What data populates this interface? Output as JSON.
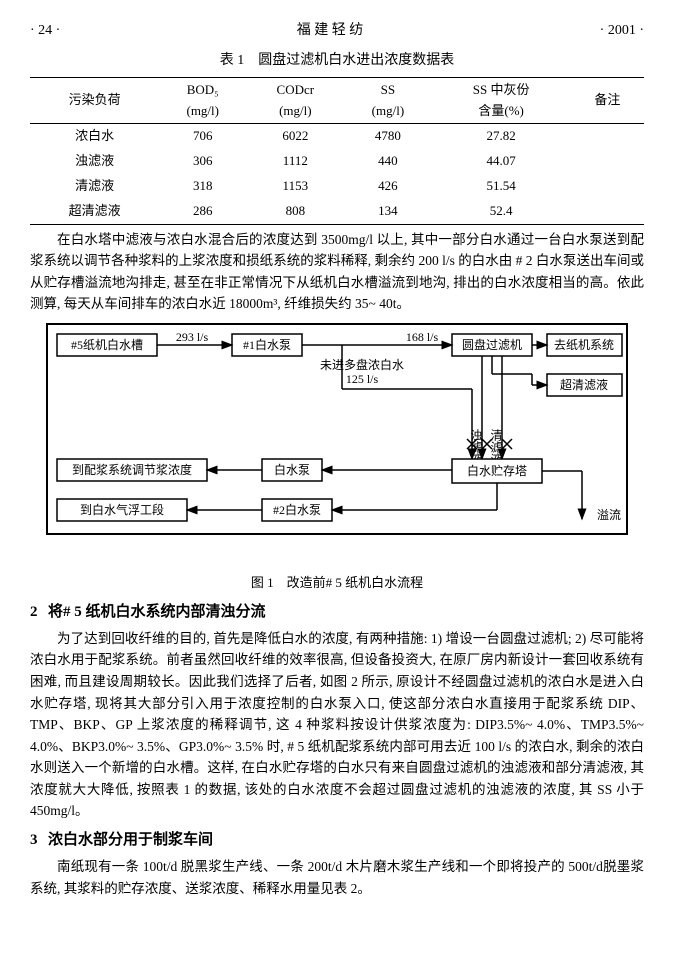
{
  "header": {
    "page": "· 24 ·",
    "journal": "福 建 轻 纺",
    "year": "· 2001 ·"
  },
  "table1": {
    "title": "表 1　圆盘过滤机白水进出浓度数据表",
    "columns": [
      "污染负荷",
      "BOD₅\n(mg/l)",
      "CODcr\n(mg/l)",
      "SS\n(mg/l)",
      "SS 中灰份\n含量(%)",
      "备注"
    ],
    "rows": [
      [
        "浓白水",
        "706",
        "6022",
        "4780",
        "27.82",
        ""
      ],
      [
        "浊滤液",
        "306",
        "1112",
        "440",
        "44.07",
        ""
      ],
      [
        "清滤液",
        "318",
        "1153",
        "426",
        "51.54",
        ""
      ],
      [
        "超清滤液",
        "286",
        "808",
        "134",
        "52.4",
        ""
      ]
    ]
  },
  "para1": "在白水塔中滤液与浓白水混合后的浓度达到 3500mg/l 以上, 其中一部分白水通过一台白水泵送到配浆系统以调节各种浆料的上浆浓度和损纸系统的浆料稀释, 剩余约 200 l/s 的白水由 # 2 白水泵送出车间或从贮存槽溢流地沟排走, 甚至在非正常情况下从纸机白水槽溢流到地沟, 排出的白水浓度相当的高。依此测算, 每天从车间排车的浓白水近 18000m³, 纤维损失约 35~ 40t。",
  "fig1": {
    "caption": "图 1　改造前# 5 纸机白水流程",
    "boxes": {
      "tank5": "#5纸机白水槽",
      "pump1": "#1白水泵",
      "disc": "圆盘过滤机",
      "toPaper": "去纸机系统",
      "ultra": "超清滤液",
      "store": "白水贮存塔",
      "pumpA": "白水泵",
      "pump2": "#2白水泵",
      "toMix": "到配浆系统调节浆浓度",
      "toFloat": "到白水气浮工段"
    },
    "labels": {
      "f293": "293 l/s",
      "f168": "168 l/s",
      "f125": "125 l/s",
      "noDisc": "未进多盘浓白水",
      "turbid": "浊滤液",
      "clear": "清滤液",
      "overflow": "溢流"
    }
  },
  "sec2": {
    "num": "2",
    "title": "将# 5 纸机白水系统内部清浊分流"
  },
  "para2": "为了达到回收纤维的目的, 首先是降低白水的浓度, 有两种措施: 1) 增设一台圆盘过滤机; 2) 尽可能将浓白水用于配浆系统。前者虽然回收纤维的效率很高, 但设备投资大, 在原厂房内新设计一套回收系统有困难, 而且建设周期较长。因此我们选择了后者, 如图 2 所示, 原设计不经圆盘过滤机的浓白水是进入白水贮存塔, 现将其大部分引入用于浓度控制的白水泵入口, 使这部分浓白水直接用于配浆系统 DIP、TMP、BKP、GP 上浆浓度的稀释调节, 这 4 种浆料按设计供浆浓度为: DIP3.5%~ 4.0%、TMP3.5%~ 4.0%、BKP3.0%~ 3.5%、GP3.0%~ 3.5% 时, # 5 纸机配浆系统内部可用去近 100 l/s 的浓白水, 剩余的浓白水则送入一个新增的白水槽。这样, 在白水贮存塔的白水只有来自圆盘过滤机的浊滤液和部分清滤液, 其浓度就大大降低, 按照表 1 的数据, 该处的白水浓度不会超过圆盘过滤机的浊滤液的浓度, 其 SS 小于 450mg/l。",
  "sec3": {
    "num": "3",
    "title": "浓白水部分用于制浆车间"
  },
  "para3": "南纸现有一条 100t/d 脱黑浆生产线、一条 200t/d 木片磨木浆生产线和一个即将投产的 500t/d脱墨浆系统, 其浆料的贮存浓度、送浆浓度、稀释水用量见表 2。"
}
